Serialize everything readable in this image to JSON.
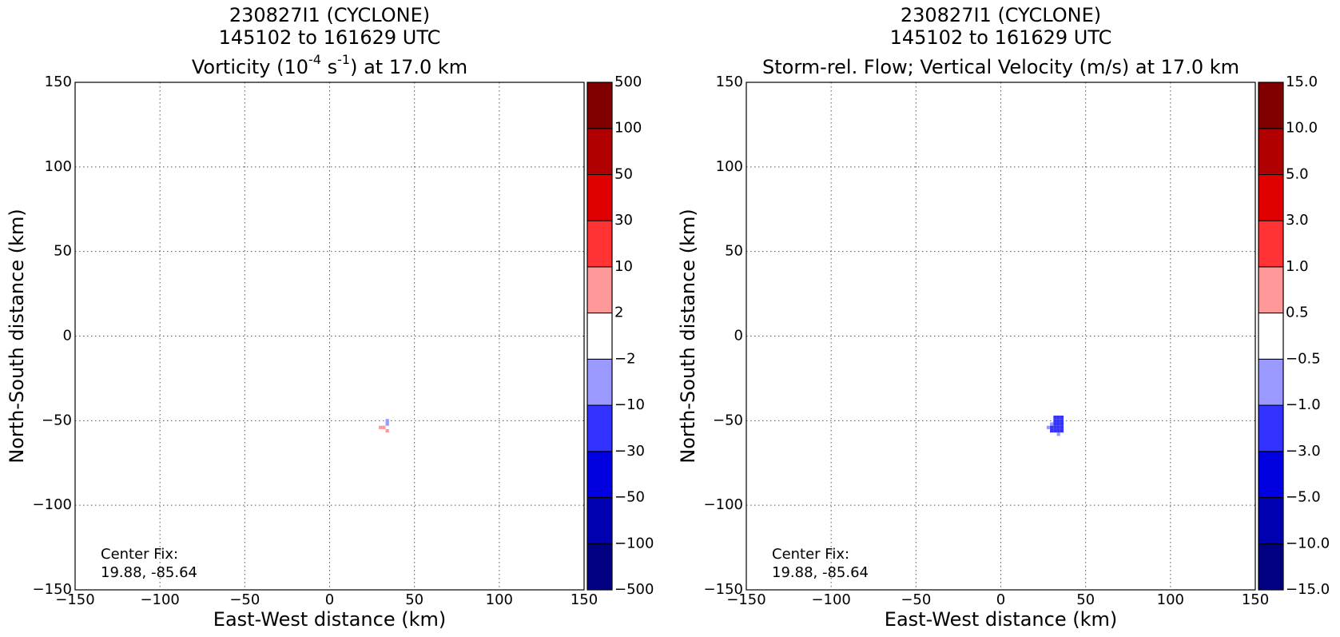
{
  "chart_data": [
    {
      "type": "heatmap",
      "title": [
        "230827I1 (CYCLONE)",
        "145102 to 161629 UTC",
        [
          "Vorticity (10",
          "-4",
          " s",
          "-1",
          ") at 17.0 km"
        ]
      ],
      "xlabel": "East-West distance (km)",
      "ylabel": "North-South distance (km)",
      "xlim": [
        -150,
        150
      ],
      "ylim": [
        -150,
        150
      ],
      "xticks": [
        {
          "value": -150,
          "label": "−150"
        },
        {
          "value": -100,
          "label": "−100"
        },
        {
          "value": -50,
          "label": "−50"
        },
        0,
        50,
        100,
        150
      ],
      "yticks": [
        {
          "value": -150,
          "label": "−150"
        },
        {
          "value": -100,
          "label": "−100"
        },
        {
          "value": -50,
          "label": "−50"
        },
        0,
        50,
        100,
        150
      ],
      "grid": true,
      "annotation": [
        "Center Fix:",
        "19.88, -85.64"
      ],
      "cticks": [
        {
          "value": -500,
          "label": "−500"
        },
        {
          "value": -100,
          "label": "−100"
        },
        {
          "value": -50,
          "label": "−50"
        },
        {
          "value": -30,
          "label": "−30"
        },
        {
          "value": -10,
          "label": "−10"
        },
        {
          "value": -2,
          "label": "−2"
        },
        2,
        10,
        30,
        50,
        100,
        500
      ],
      "colors": [
        "#000080",
        "#0000b0",
        "#0000e0",
        "#3333ff",
        "#9999ff",
        "#ffffff",
        "#ff9999",
        "#ff3333",
        "#e00000",
        "#b00000",
        "#800000"
      ],
      "x": [
        30,
        32,
        34,
        34,
        34
      ],
      "y": [
        -54,
        -54,
        -50,
        -52,
        -56
      ],
      "values": [
        5,
        5,
        -5,
        -5,
        5
      ]
    },
    {
      "type": "heatmap",
      "title": [
        "230827I1 (CYCLONE)",
        "145102 to 161629 UTC",
        [
          "Storm-rel. Flow; Vertical Velocity (m/s) at 17.0 km"
        ]
      ],
      "xlabel": "East-West distance (km)",
      "ylabel": "North-South distance (km)",
      "xlim": [
        -150,
        150
      ],
      "ylim": [
        -150,
        150
      ],
      "xticks": [
        {
          "value": -150,
          "label": "−150"
        },
        {
          "value": -100,
          "label": "−100"
        },
        {
          "value": -50,
          "label": "−50"
        },
        0,
        50,
        100,
        150
      ],
      "yticks": [
        {
          "value": -150,
          "label": "−150"
        },
        {
          "value": -100,
          "label": "−100"
        },
        {
          "value": -50,
          "label": "−50"
        },
        0,
        50,
        100,
        150
      ],
      "grid": true,
      "annotation": [
        "Center Fix:",
        "19.88, -85.64"
      ],
      "cticks": [
        {
          "value": -15,
          "label": "−15.0"
        },
        {
          "value": -10,
          "label": "−10.0"
        },
        {
          "value": -5,
          "label": "−5.0"
        },
        {
          "value": -3,
          "label": "−3.0"
        },
        {
          "value": -1,
          "label": "−1.0"
        },
        {
          "value": -0.5,
          "label": "−0.5"
        },
        {
          "value": 0.5,
          "label": "0.5"
        },
        {
          "value": 1,
          "label": "1.0"
        },
        {
          "value": 3,
          "label": "3.0"
        },
        {
          "value": 5,
          "label": "5.0"
        },
        {
          "value": 10,
          "label": "10.0"
        },
        {
          "value": 15,
          "label": "15.0"
        }
      ],
      "colors": [
        "#000080",
        "#0000b0",
        "#0000e0",
        "#3333ff",
        "#9999ff",
        "#ffffff",
        "#ff9999",
        "#ff3333",
        "#e00000",
        "#b00000",
        "#800000"
      ],
      "x": [
        32,
        34,
        36,
        32,
        34,
        36,
        30,
        32,
        34,
        36,
        28,
        30,
        32,
        34,
        36,
        30,
        32,
        34,
        36,
        34
      ],
      "y": [
        -48,
        -48,
        -48,
        -50,
        -50,
        -50,
        -52,
        -52,
        -52,
        -52,
        -54,
        -54,
        -54,
        -54,
        -54,
        -56,
        -56,
        -56,
        -56,
        -58
      ],
      "values": [
        -2,
        -2,
        -2,
        -2,
        -2,
        -2,
        -0.8,
        -2,
        -2,
        -2,
        -0.8,
        -2,
        -2,
        -2,
        -2,
        -2,
        -2,
        -2,
        -2,
        -0.8
      ]
    }
  ]
}
